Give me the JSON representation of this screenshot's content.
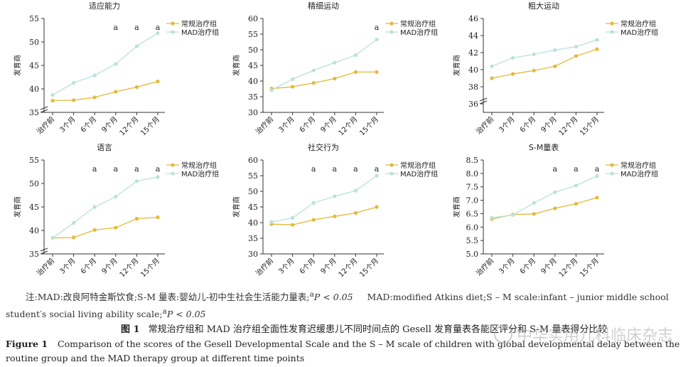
{
  "colors": {
    "conventional": "#e5b93a",
    "mad": "#b9e2da",
    "axis": "#333333"
  },
  "legend": {
    "conventional": "常规治疗组",
    "mad": "MAD治疗组"
  },
  "chart_data": [
    {
      "type": "line",
      "title": "适应能力",
      "ylabel": "发育商",
      "ylim": [
        35,
        55
      ],
      "yticks": [
        35,
        40,
        45,
        50,
        55
      ],
      "y_break": true,
      "categories": [
        "治疗前",
        "3个月",
        "6个月",
        "9个月",
        "12个月",
        "15个月"
      ],
      "series": [
        {
          "name": "常规治疗组",
          "values": [
            37.5,
            37.6,
            38.2,
            39.4,
            40.4,
            41.6
          ]
        },
        {
          "name": "MAD治疗组",
          "values": [
            38.7,
            41.3,
            42.9,
            45.3,
            49.1,
            51.9
          ]
        }
      ],
      "annotations": [
        "",
        "",
        "",
        "a",
        "a",
        "a"
      ]
    },
    {
      "type": "line",
      "title": "精细运动",
      "ylabel": "发育商",
      "ylim": [
        30,
        60
      ],
      "yticks": [
        30,
        35,
        40,
        45,
        50,
        55,
        60
      ],
      "y_break": false,
      "categories": [
        "治疗前",
        "3个月",
        "6个月",
        "9个月",
        "12个月",
        "15个月"
      ],
      "series": [
        {
          "name": "常规治疗组",
          "values": [
            37.6,
            38.2,
            39.4,
            40.8,
            42.9,
            42.9
          ]
        },
        {
          "name": "MAD治疗组",
          "values": [
            37.1,
            40.6,
            43.4,
            45.9,
            48.3,
            53.3
          ]
        }
      ],
      "annotations": [
        "",
        "",
        "",
        "",
        "",
        "a"
      ]
    },
    {
      "type": "line",
      "title": "粗大运动",
      "ylabel": "发育商",
      "ylim": [
        35,
        46
      ],
      "yticks": [
        36,
        38,
        40,
        42,
        44,
        46
      ],
      "y_break": true,
      "categories": [
        "治疗前",
        "3个月",
        "6个月",
        "9个月",
        "12个月",
        "15个月"
      ],
      "series": [
        {
          "name": "常规治疗组",
          "values": [
            39.0,
            39.5,
            39.9,
            40.4,
            41.6,
            42.4
          ]
        },
        {
          "name": "MAD治疗组",
          "values": [
            40.4,
            41.4,
            41.8,
            42.3,
            42.7,
            43.5
          ]
        }
      ],
      "annotations": [
        "",
        "",
        "",
        "",
        "",
        ""
      ]
    },
    {
      "type": "line",
      "title": "语言",
      "ylabel": "发育商",
      "ylim": [
        35,
        55
      ],
      "yticks": [
        35,
        40,
        45,
        50,
        55
      ],
      "y_break": true,
      "categories": [
        "治疗前",
        "3个月",
        "6个月",
        "9个月",
        "12个月",
        "15个月"
      ],
      "series": [
        {
          "name": "常规治疗组",
          "values": [
            38.4,
            38.5,
            40.1,
            40.6,
            42.5,
            42.8
          ]
        },
        {
          "name": "MAD治疗组",
          "values": [
            38.4,
            41.6,
            45.0,
            47.2,
            50.5,
            51.4
          ]
        }
      ],
      "annotations": [
        "",
        "",
        "a",
        "a",
        "a",
        "a"
      ]
    },
    {
      "type": "line",
      "title": "社交行为",
      "ylabel": "发育商",
      "ylim": [
        30,
        60
      ],
      "yticks": [
        30,
        35,
        40,
        45,
        50,
        55,
        60
      ],
      "y_break": false,
      "categories": [
        "治疗前",
        "3个月",
        "6个月",
        "9个月",
        "12个月",
        "15个月"
      ],
      "series": [
        {
          "name": "常规治疗组",
          "values": [
            39.5,
            39.3,
            40.9,
            42.0,
            43.1,
            45.0
          ]
        },
        {
          "name": "MAD治疗组",
          "values": [
            40.2,
            41.5,
            46.3,
            48.4,
            50.2,
            55.0
          ]
        }
      ],
      "annotations": [
        "",
        "",
        "a",
        "a",
        "a",
        "a"
      ]
    },
    {
      "type": "line",
      "title": "S-M量表",
      "ylabel": "发育商",
      "ylim": [
        5.0,
        8.5
      ],
      "yticks": [
        5.0,
        5.5,
        6.0,
        6.5,
        7.0,
        7.5,
        8.0,
        8.5
      ],
      "y_break": false,
      "categories": [
        "治疗前",
        "3个月",
        "6个月",
        "9个月",
        "12个月",
        "15个月"
      ],
      "series": [
        {
          "name": "常规治疗组",
          "values": [
            6.3,
            6.47,
            6.49,
            6.7,
            6.87,
            7.1
          ]
        },
        {
          "name": "MAD治疗组",
          "values": [
            6.35,
            6.45,
            6.9,
            7.3,
            7.55,
            7.9
          ]
        }
      ],
      "annotations": [
        "",
        "",
        "",
        "a",
        "a",
        "a"
      ]
    }
  ],
  "note": {
    "prefix": "注:MAD:改良阿特金斯饮食;S-M 量表:婴幼儿-初中生社会生活能力量表;",
    "p_sup1": "a",
    "p_text1": "P < 0.05",
    "en_text": "MAD:modified Atkins diet;S – M scale:infant – junior middle school student′s social living ability scale;",
    "p_sup2": "a",
    "p_text2": "P < 0.05"
  },
  "caption": {
    "cn_label": "图 1",
    "cn_text": "常规治疗组和 MAD 治疗组全面性发育迟缓患儿不同时间点的 Gesell 发育量表各能区评分和 S-M 量表得分比较",
    "en_label": "Figure 1",
    "en_text": "Comparison of the scores of the Gesell Developmental Scale and the S – M scale of children with global developmental delay between the routine group and the MAD therapy group at different time points"
  },
  "watermark": "中华实用儿科临床杂志"
}
